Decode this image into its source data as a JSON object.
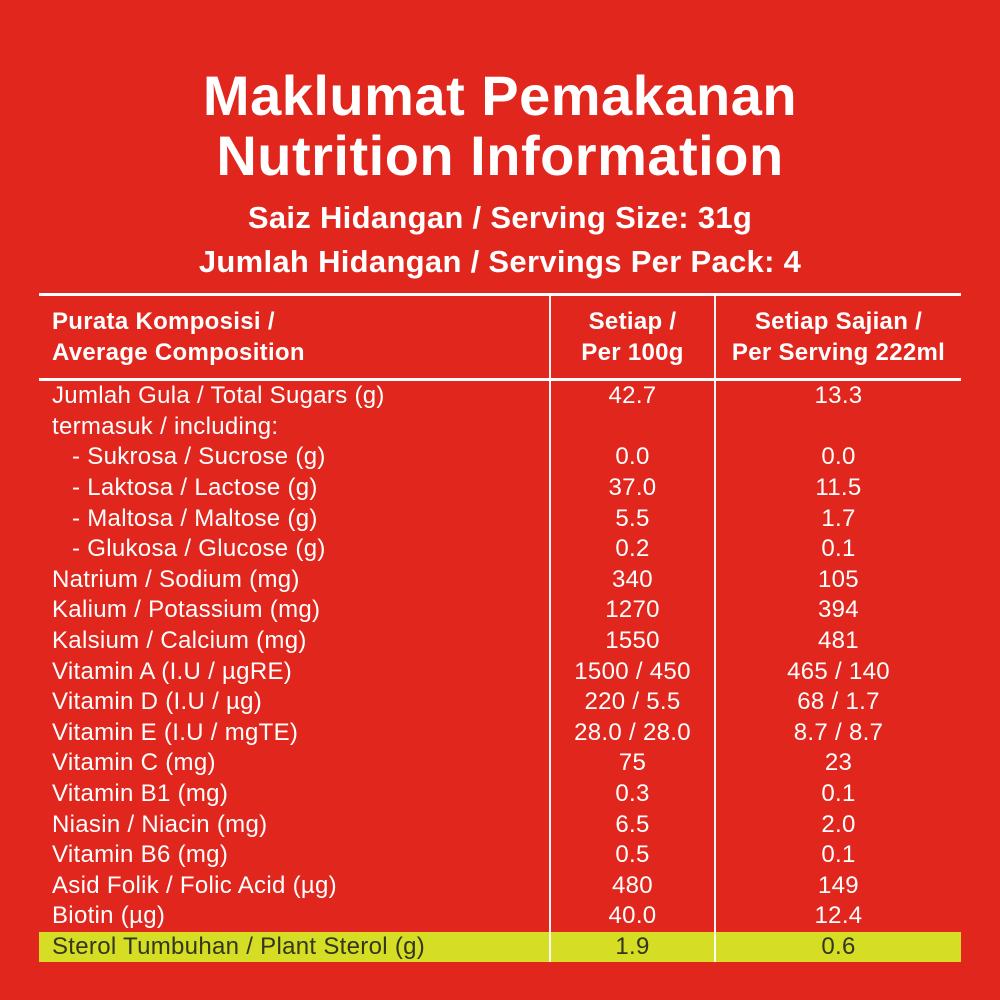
{
  "colors": {
    "background_red": "#e1261d",
    "text_white": "#ffffff",
    "highlight_yellow": "#d5dd25",
    "highlight_text": "#33361a"
  },
  "heading": {
    "title_line1": "Maklumat Pemakanan",
    "title_line2": "Nutrition Information",
    "serving_size_line": "Saiz Hidangan / Serving Size: 31g",
    "servings_per_pack_line": "Jumlah Hidangan / Servings Per Pack: 4"
  },
  "table": {
    "header": {
      "composition": [
        "Purata Komposisi /",
        "Average Composition"
      ],
      "per_100g": [
        "Setiap /",
        "Per 100g"
      ],
      "per_serving": [
        "Setiap Sajian /",
        "Per Serving 222ml"
      ]
    },
    "rows": [
      {
        "label": "Jumlah Gula / Total Sugars (g)",
        "per_100g": "42.7",
        "per_serving": "13.3"
      },
      {
        "label": "termasuk / including:",
        "per_100g": "",
        "per_serving": ""
      },
      {
        "label": "- Sukrosa / Sucrose (g)",
        "per_100g": "0.0",
        "per_serving": "0.0",
        "indent": true
      },
      {
        "label": "- Laktosa / Lactose (g)",
        "per_100g": "37.0",
        "per_serving": "11.5",
        "indent": true
      },
      {
        "label": "- Maltosa / Maltose (g)",
        "per_100g": "5.5",
        "per_serving": "1.7",
        "indent": true
      },
      {
        "label": "- Glukosa / Glucose (g)",
        "per_100g": "0.2",
        "per_serving": "0.1",
        "indent": true
      },
      {
        "label": "Natrium / Sodium (mg)",
        "per_100g": "340",
        "per_serving": "105"
      },
      {
        "label": "Kalium / Potassium (mg)",
        "per_100g": "1270",
        "per_serving": "394"
      },
      {
        "label": "Kalsium / Calcium (mg)",
        "per_100g": "1550",
        "per_serving": "481"
      },
      {
        "label": "Vitamin A (I.U / µgRE)",
        "per_100g": "1500 / 450",
        "per_serving": "465 / 140"
      },
      {
        "label": "Vitamin D (I.U / µg)",
        "per_100g": "220 / 5.5",
        "per_serving": "68 / 1.7"
      },
      {
        "label": "Vitamin E (I.U / mgTE)",
        "per_100g": "28.0 / 28.0",
        "per_serving": "8.7 / 8.7"
      },
      {
        "label": "Vitamin C (mg)",
        "per_100g": "75",
        "per_serving": "23"
      },
      {
        "label": "Vitamin B1 (mg)",
        "per_100g": "0.3",
        "per_serving": "0.1"
      },
      {
        "label": "Niasin / Niacin (mg)",
        "per_100g": "6.5",
        "per_serving": "2.0"
      },
      {
        "label": "Vitamin B6 (mg)",
        "per_100g": "0.5",
        "per_serving": "0.1"
      },
      {
        "label": "Asid Folik / Folic Acid (µg)",
        "per_100g": "480",
        "per_serving": "149"
      },
      {
        "label": "Biotin (µg)",
        "per_100g": "40.0",
        "per_serving": "12.4"
      },
      {
        "label": "Sterol Tumbuhan / Plant Sterol (g)",
        "per_100g": "1.9",
        "per_serving": "0.6",
        "highlight": true
      }
    ]
  }
}
